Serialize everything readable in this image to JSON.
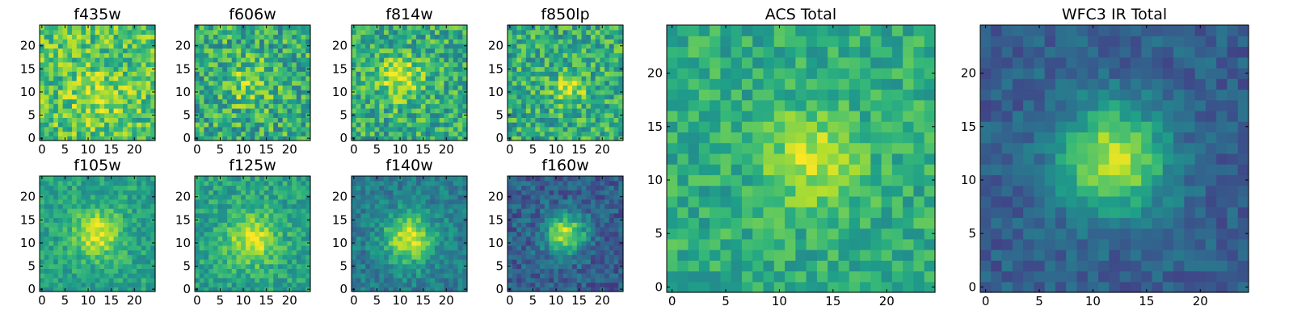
{
  "chart_data": [
    {
      "type": "heatmap",
      "title": "f435w",
      "xticks": [
        0,
        5,
        10,
        15,
        20
      ],
      "yticks": [
        0,
        5,
        10,
        15,
        20
      ],
      "xlim": [
        0,
        24
      ],
      "ylim": [
        0,
        24
      ],
      "grid": false,
      "colormap": "viridis",
      "peak_center": [
        12,
        9
      ],
      "peak_width": 4.0,
      "peak_amplitude": 0.15,
      "base_level": 0.72,
      "noise_level": 0.22,
      "seed": 11
    },
    {
      "type": "heatmap",
      "title": "f606w",
      "xticks": [
        0,
        5,
        10,
        15,
        20
      ],
      "yticks": [
        0,
        5,
        10,
        15,
        20
      ],
      "xlim": [
        0,
        24
      ],
      "ylim": [
        0,
        24
      ],
      "grid": false,
      "colormap": "viridis",
      "peak_center": [
        11,
        12
      ],
      "peak_width": 3.5,
      "peak_amplitude": 0.2,
      "base_level": 0.62,
      "noise_level": 0.24,
      "seed": 23
    },
    {
      "type": "heatmap",
      "title": "f814w",
      "xticks": [
        0,
        5,
        10,
        15,
        20
      ],
      "yticks": [
        0,
        5,
        10,
        15,
        20
      ],
      "xlim": [
        0,
        24
      ],
      "ylim": [
        0,
        24
      ],
      "grid": false,
      "colormap": "viridis",
      "peak_center": [
        10,
        13
      ],
      "peak_width": 3.5,
      "peak_amplitude": 0.28,
      "base_level": 0.62,
      "noise_level": 0.22,
      "seed": 37
    },
    {
      "type": "heatmap",
      "title": "f850lp",
      "xticks": [
        0,
        5,
        10,
        15,
        20
      ],
      "yticks": [
        0,
        5,
        10,
        15,
        20
      ],
      "xlim": [
        0,
        24
      ],
      "ylim": [
        0,
        24
      ],
      "grid": false,
      "colormap": "viridis",
      "peak_center": [
        13,
        11
      ],
      "peak_width": 2.5,
      "peak_amplitude": 0.28,
      "base_level": 0.62,
      "noise_level": 0.22,
      "seed": 41
    },
    {
      "type": "heatmap",
      "title": "f105w",
      "xticks": [
        0,
        5,
        10,
        15,
        20
      ],
      "yticks": [
        0,
        5,
        10,
        15,
        20
      ],
      "xlim": [
        0,
        24
      ],
      "ylim": [
        0,
        24
      ],
      "grid": false,
      "colormap": "viridis",
      "peak_center": [
        12,
        12
      ],
      "peak_width": 3.5,
      "peak_amplitude": 0.38,
      "base_level": 0.58,
      "noise_level": 0.13,
      "seed": 53
    },
    {
      "type": "heatmap",
      "title": "f125w",
      "xticks": [
        0,
        5,
        10,
        15,
        20
      ],
      "yticks": [
        0,
        5,
        10,
        15,
        20
      ],
      "xlim": [
        0,
        24
      ],
      "ylim": [
        0,
        24
      ],
      "grid": false,
      "colormap": "viridis",
      "peak_center": [
        12,
        11
      ],
      "peak_width": 3.8,
      "peak_amplitude": 0.36,
      "base_level": 0.58,
      "noise_level": 0.14,
      "seed": 67
    },
    {
      "type": "heatmap",
      "title": "f140w",
      "xticks": [
        0,
        5,
        10,
        15,
        20
      ],
      "yticks": [
        0,
        5,
        10,
        15,
        20
      ],
      "xlim": [
        0,
        24
      ],
      "ylim": [
        0,
        24
      ],
      "grid": false,
      "colormap": "viridis",
      "peak_center": [
        12,
        11
      ],
      "peak_width": 3.8,
      "peak_amplitude": 0.52,
      "base_level": 0.42,
      "noise_level": 0.13,
      "seed": 79
    },
    {
      "type": "heatmap",
      "title": "f160w",
      "xticks": [
        0,
        5,
        10,
        15,
        20
      ],
      "yticks": [
        0,
        5,
        10,
        15,
        20
      ],
      "xlim": [
        0,
        24
      ],
      "ylim": [
        0,
        24
      ],
      "grid": false,
      "colormap": "viridis",
      "peak_center": [
        12,
        12
      ],
      "peak_width": 3.0,
      "peak_amplitude": 0.62,
      "base_level": 0.3,
      "noise_level": 0.14,
      "seed": 83
    },
    {
      "type": "heatmap",
      "title": "ACS Total",
      "xticks": [
        0,
        5,
        10,
        15,
        20
      ],
      "yticks": [
        0,
        5,
        10,
        15,
        20
      ],
      "xlim": [
        0,
        24
      ],
      "ylim": [
        0,
        24
      ],
      "grid": false,
      "colormap": "viridis",
      "peak_center": [
        13,
        12
      ],
      "peak_width": 3.0,
      "peak_amplitude": 0.3,
      "base_level": 0.62,
      "noise_level": 0.14,
      "seed": 97
    },
    {
      "type": "heatmap",
      "title": "WFC3 IR Total",
      "xticks": [
        0,
        5,
        10,
        15,
        20
      ],
      "yticks": [
        0,
        5,
        10,
        15,
        20
      ],
      "xlim": [
        0,
        24
      ],
      "ylim": [
        0,
        24
      ],
      "grid": false,
      "colormap": "viridis",
      "peak_center": [
        12,
        12
      ],
      "peak_width": 3.5,
      "peak_amplitude": 0.62,
      "base_level": 0.3,
      "noise_level": 0.1,
      "seed": 101
    }
  ]
}
